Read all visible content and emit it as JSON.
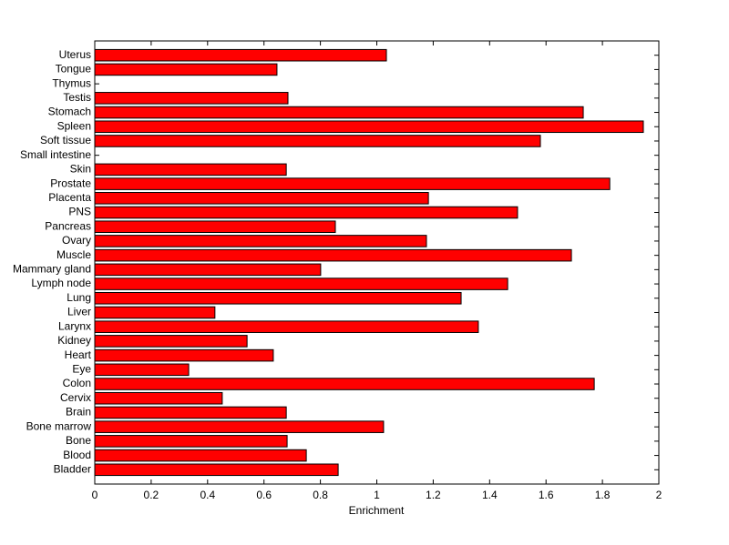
{
  "chart_data": {
    "type": "barh",
    "xlabel": "Enrichment",
    "categories": [
      "Bladder",
      "Blood",
      "Bone",
      "Bone marrow",
      "Brain",
      "Cervix",
      "Colon",
      "Eye",
      "Heart",
      "Kidney",
      "Larynx",
      "Liver",
      "Lung",
      "Lymph node",
      "Mammary gland",
      "Muscle",
      "Ovary",
      "Pancreas",
      "PNS",
      "Placenta",
      "Prostate",
      "Skin",
      "Small intestine",
      "Soft tissue",
      "Spleen",
      "Stomach",
      "Testis",
      "Thymus",
      "Tongue",
      "Uterus"
    ],
    "values": [
      0.863,
      0.75,
      0.682,
      1.024,
      0.679,
      0.452,
      1.771,
      0.333,
      0.633,
      0.54,
      1.36,
      0.426,
      1.299,
      1.464,
      0.801,
      1.69,
      1.176,
      0.853,
      1.499,
      1.183,
      1.826,
      0.679,
      0,
      1.58,
      1.945,
      1.732,
      0.685,
      0,
      0.646,
      1.034
    ],
    "color": "#ff0000",
    "xlim": [
      0,
      2
    ],
    "xticks": [
      0,
      0.2,
      0.4,
      0.6,
      0.8,
      1,
      1.2,
      1.4,
      1.6,
      1.8,
      2
    ],
    "grid": false
  }
}
